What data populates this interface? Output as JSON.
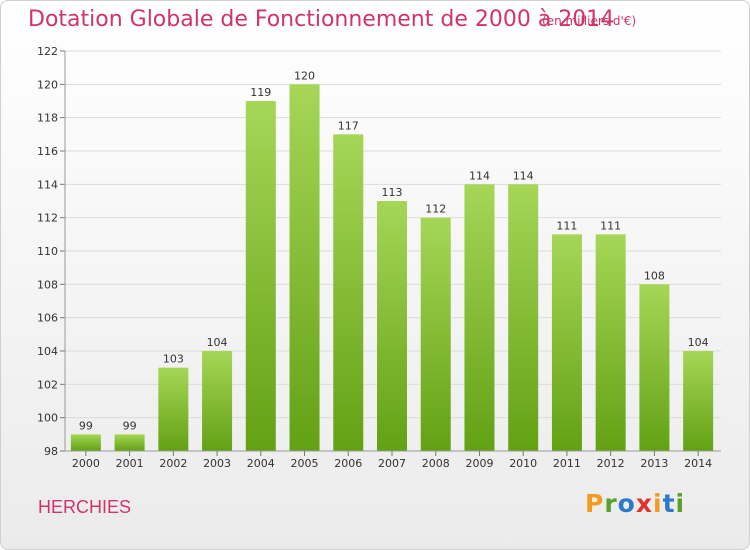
{
  "header": {
    "title": "Dotation Globale de Fonctionnement de 2000 à 2014",
    "subtitle": "(en milliers d'€)"
  },
  "footer": {
    "commune": "HERCHIES",
    "logo_letters": [
      "P",
      "r",
      "o",
      "x",
      "i",
      "t",
      "i"
    ]
  },
  "colors": {
    "accent": "#d1336b",
    "bar_top": "#a6d657",
    "bar_bottom": "#63a114",
    "logo": [
      "#f29b1e",
      "#5aa02c",
      "#2e79c9",
      "#e4312b",
      "#f29b1e",
      "#2e79c9",
      "#5aa02c"
    ]
  },
  "chart_data": {
    "type": "bar",
    "title": "Dotation Globale de Fonctionnement de 2000 à 2014",
    "subtitle": "(en milliers d'€)",
    "categories": [
      "2000",
      "2001",
      "2002",
      "2003",
      "2004",
      "2005",
      "2006",
      "2007",
      "2008",
      "2009",
      "2010",
      "2011",
      "2012",
      "2013",
      "2014"
    ],
    "values": [
      99,
      99,
      103,
      104,
      119,
      120,
      117,
      113,
      112,
      114,
      114,
      111,
      111,
      108,
      104
    ],
    "ylim": [
      98,
      122
    ],
    "yticks": [
      98,
      100,
      102,
      104,
      106,
      108,
      110,
      112,
      114,
      116,
      118,
      120,
      122
    ],
    "grid": true,
    "data_labels": true
  }
}
